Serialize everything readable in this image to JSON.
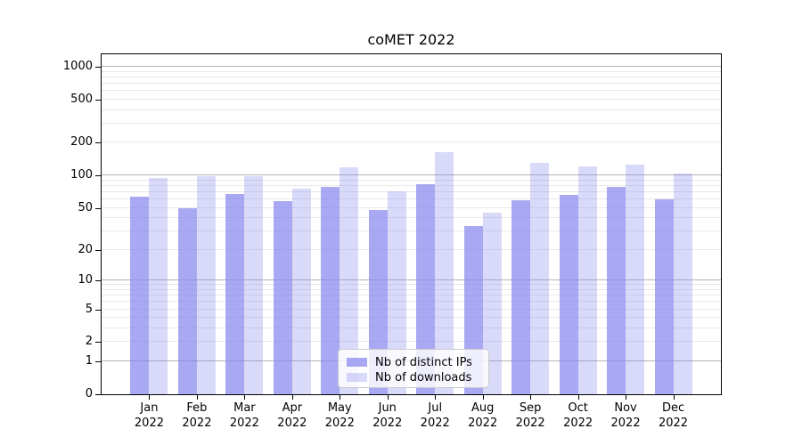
{
  "title": "coMET 2022",
  "colors": {
    "bar_base": "#8888ee",
    "grid_major": "#b3b3b3",
    "grid_minor": "#e8e8e8",
    "spine": "#000000",
    "legend_border": "#cccccc",
    "text": "#000000",
    "background": "#ffffff"
  },
  "chart_data": {
    "type": "bar",
    "title": "coMET 2022",
    "categories": [
      "Jan 2022",
      "Feb 2022",
      "Mar 2022",
      "Apr 2022",
      "May 2022",
      "Jun 2022",
      "Jul 2022",
      "Aug 2022",
      "Sep 2022",
      "Oct 2022",
      "Nov 2022",
      "Dec 2022"
    ],
    "series": [
      {
        "name": "Nb of distinct IPs",
        "color": "#8888ee",
        "alpha": 0.72,
        "values": [
          63,
          50,
          67,
          58,
          78,
          48,
          83,
          34,
          59,
          66,
          79,
          60
        ]
      },
      {
        "name": "Nb of downloads",
        "color": "#8888ee",
        "alpha": 0.32,
        "values": [
          94,
          98,
          99,
          75,
          120,
          71,
          165,
          45,
          130,
          122,
          126,
          105
        ]
      }
    ],
    "xlabel": "",
    "ylabel": "",
    "y_axis": {
      "scale": "log1p",
      "ticks": [
        1000,
        500,
        200,
        100,
        50,
        20,
        10,
        5,
        2,
        1,
        0
      ],
      "ylim": [
        0,
        1300
      ]
    },
    "grid": {
      "major_lines": [
        1,
        10,
        100,
        1000
      ],
      "minor_lines": [
        2,
        3,
        4,
        5,
        6,
        7,
        8,
        9,
        20,
        30,
        40,
        50,
        60,
        70,
        80,
        90,
        200,
        300,
        400,
        500,
        600,
        700,
        800,
        900
      ]
    },
    "legend_position": "lower center"
  }
}
